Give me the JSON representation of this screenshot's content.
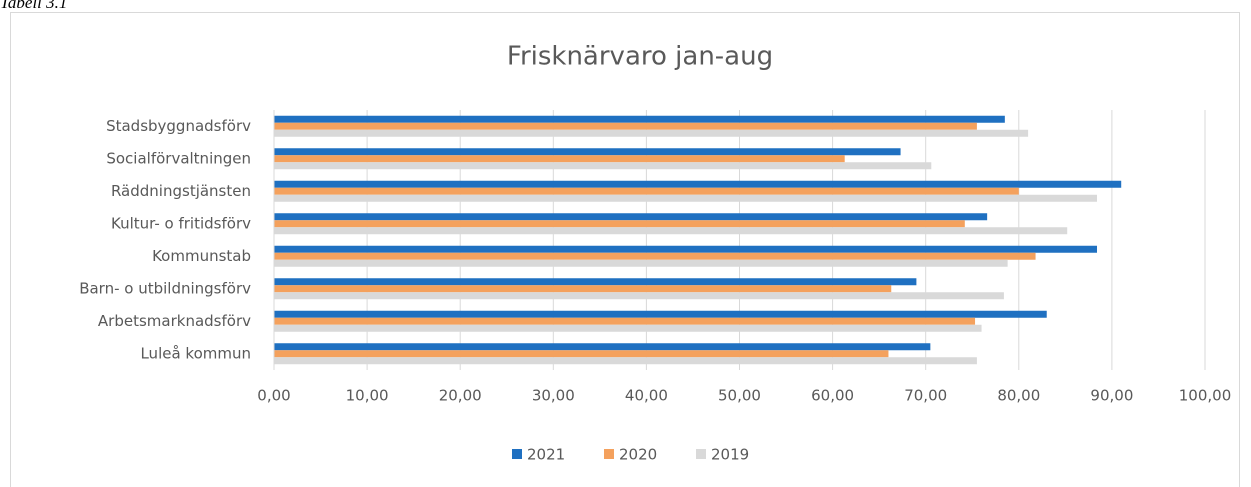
{
  "caption": "Tabell 3.1",
  "chart_data": {
    "type": "hbar",
    "title": "Frisknärvaro jan-aug",
    "categories": [
      "Stadsbyggnadsförv",
      "Socialförvaltningen",
      "Räddningstjänsten",
      "Kultur- o fritidsförv",
      "Kommunstab",
      "Barn- o utbildningsförv",
      "Arbetsmarknadsförv",
      "Luleå kommun"
    ],
    "series": [
      {
        "name": "2021",
        "color": "#1f70c1",
        "values": [
          78.5,
          67.3,
          91.0,
          76.6,
          88.4,
          69.0,
          83.0,
          70.5
        ]
      },
      {
        "name": "2020",
        "color": "#f4a15d",
        "values": [
          75.5,
          61.3,
          80.0,
          74.2,
          81.8,
          66.3,
          75.3,
          66.0
        ]
      },
      {
        "name": "2019",
        "color": "#d9d9d9",
        "values": [
          81.0,
          70.6,
          88.4,
          85.2,
          78.8,
          78.4,
          76.0,
          75.5
        ]
      }
    ],
    "xlim": [
      0,
      100
    ],
    "xticks": [
      {
        "value": 0,
        "label": "0,00"
      },
      {
        "value": 10,
        "label": "10,00"
      },
      {
        "value": 20,
        "label": "20,00"
      },
      {
        "value": 30,
        "label": "30,00"
      },
      {
        "value": 40,
        "label": "40,00"
      },
      {
        "value": 50,
        "label": "50,00"
      },
      {
        "value": 60,
        "label": "60,00"
      },
      {
        "value": 70,
        "label": "70,00"
      },
      {
        "value": 80,
        "label": "80,00"
      },
      {
        "value": 90,
        "label": "90,00"
      },
      {
        "value": 100,
        "label": "100,00"
      }
    ],
    "grid": true,
    "legend": "bottom"
  }
}
